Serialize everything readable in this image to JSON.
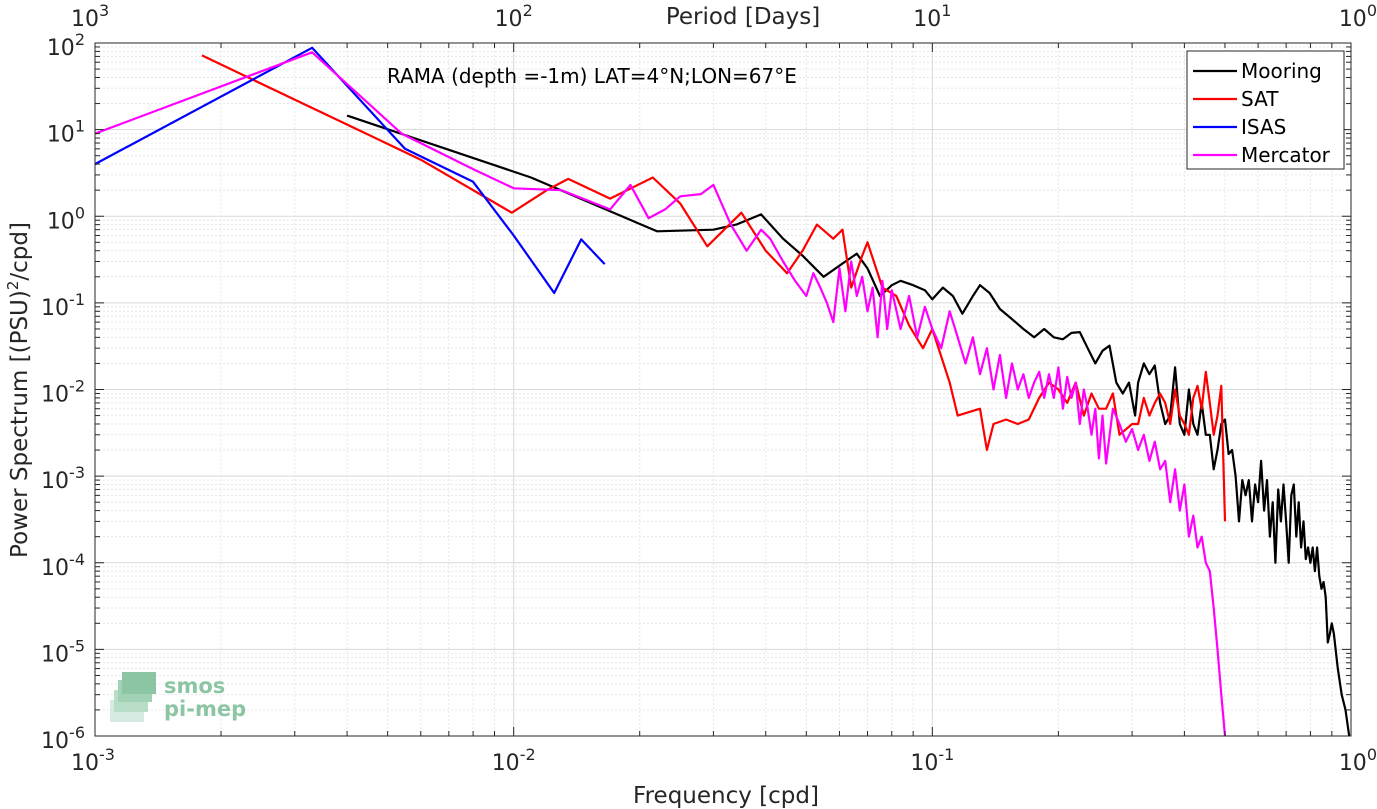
{
  "chart_data": {
    "type": "line",
    "title": "RAMA (depth =-1m) LAT=4°N;LON=67°E",
    "xlabel": "Frequency [cpd]",
    "ylabel": "Power Spectrum [(PSU)",
    "ylabel_sup": "2",
    "ylabel_end": "/cpd]",
    "top_xlabel": "Period [Days]",
    "xscale": "log",
    "yscale": "log",
    "xlim": [
      0.001,
      1
    ],
    "ylim": [
      1e-06,
      100
    ],
    "grid": true,
    "legend_placement": "top-right",
    "x_ticks": [
      {
        "value": 0.001,
        "base": "10",
        "exp": "-3"
      },
      {
        "value": 0.01,
        "base": "10",
        "exp": "-2"
      },
      {
        "value": 0.1,
        "base": "10",
        "exp": "-1"
      },
      {
        "value": 1,
        "base": "10",
        "exp": "0"
      }
    ],
    "y_ticks": [
      {
        "value": 1e-06,
        "base": "10",
        "exp": "-6"
      },
      {
        "value": 1e-05,
        "base": "10",
        "exp": "-5"
      },
      {
        "value": 0.0001,
        "base": "10",
        "exp": "-4"
      },
      {
        "value": 0.001,
        "base": "10",
        "exp": "-3"
      },
      {
        "value": 0.01,
        "base": "10",
        "exp": "-2"
      },
      {
        "value": 0.1,
        "base": "10",
        "exp": "-1"
      },
      {
        "value": 1,
        "base": "10",
        "exp": "0"
      },
      {
        "value": 10,
        "base": "10",
        "exp": "1"
      },
      {
        "value": 100,
        "base": "10",
        "exp": "2"
      }
    ],
    "top_ticks": [
      {
        "value": 0.001,
        "base": "10",
        "exp": "3"
      },
      {
        "value": 0.01,
        "base": "10",
        "exp": "2"
      },
      {
        "value": 0.1,
        "base": "10",
        "exp": "1"
      },
      {
        "value": 1,
        "base": "10",
        "exp": "0"
      }
    ],
    "series": [
      {
        "name": "Mooring",
        "color": "#000000",
        "points": [
          [
            0.004,
            14.5
          ],
          [
            0.011,
            2.8
          ],
          [
            0.022,
            0.67
          ],
          [
            0.03,
            0.7
          ],
          [
            0.034,
            0.8
          ],
          [
            0.039,
            1.05
          ],
          [
            0.044,
            0.55
          ],
          [
            0.049,
            0.35
          ],
          [
            0.055,
            0.2
          ],
          [
            0.062,
            0.3
          ],
          [
            0.066,
            0.37
          ],
          [
            0.07,
            0.25
          ],
          [
            0.075,
            0.12
          ],
          [
            0.08,
            0.16
          ],
          [
            0.084,
            0.18
          ],
          [
            0.09,
            0.16
          ],
          [
            0.096,
            0.14
          ],
          [
            0.1,
            0.11
          ],
          [
            0.106,
            0.15
          ],
          [
            0.112,
            0.12
          ],
          [
            0.118,
            0.075
          ],
          [
            0.125,
            0.12
          ],
          [
            0.13,
            0.16
          ],
          [
            0.137,
            0.13
          ],
          [
            0.145,
            0.085
          ],
          [
            0.155,
            0.065
          ],
          [
            0.165,
            0.05
          ],
          [
            0.175,
            0.04
          ],
          [
            0.185,
            0.05
          ],
          [
            0.195,
            0.04
          ],
          [
            0.205,
            0.038
          ],
          [
            0.215,
            0.045
          ],
          [
            0.225,
            0.046
          ],
          [
            0.235,
            0.03
          ],
          [
            0.245,
            0.02
          ],
          [
            0.255,
            0.028
          ],
          [
            0.265,
            0.032
          ],
          [
            0.275,
            0.012
          ],
          [
            0.285,
            0.009
          ],
          [
            0.295,
            0.012
          ],
          [
            0.305,
            0.005
          ],
          [
            0.31,
            0.012
          ],
          [
            0.32,
            0.02
          ],
          [
            0.33,
            0.015
          ],
          [
            0.34,
            0.019
          ],
          [
            0.35,
            0.007
          ],
          [
            0.36,
            0.004
          ],
          [
            0.37,
            0.005
          ],
          [
            0.38,
            0.018
          ],
          [
            0.39,
            0.004
          ],
          [
            0.4,
            0.003
          ],
          [
            0.41,
            0.01
          ],
          [
            0.42,
            0.004
          ],
          [
            0.43,
            0.003
          ],
          [
            0.44,
            0.007
          ],
          [
            0.45,
            0.003
          ],
          [
            0.46,
            0.003
          ],
          [
            0.47,
            0.0012
          ],
          [
            0.48,
            0.002
          ],
          [
            0.49,
            0.004
          ],
          [
            0.5,
            0.0045
          ],
          [
            0.51,
            0.0018
          ],
          [
            0.52,
            0.002
          ],
          [
            0.53,
            0.001
          ],
          [
            0.54,
            0.0003
          ],
          [
            0.55,
            0.0009
          ],
          [
            0.56,
            0.0006
          ],
          [
            0.57,
            0.0009
          ],
          [
            0.58,
            0.0003
          ],
          [
            0.59,
            0.0008
          ],
          [
            0.6,
            0.0005
          ],
          [
            0.61,
            0.0015
          ],
          [
            0.62,
            0.0004
          ],
          [
            0.63,
            0.0009
          ],
          [
            0.64,
            0.0002
          ],
          [
            0.65,
            0.0005
          ],
          [
            0.66,
            0.0001
          ],
          [
            0.67,
            0.0007
          ],
          [
            0.68,
            0.0003
          ],
          [
            0.69,
            0.0008
          ],
          [
            0.7,
            0.0003
          ],
          [
            0.71,
            0.0001
          ],
          [
            0.72,
            0.0006
          ],
          [
            0.73,
            0.0008
          ],
          [
            0.74,
            0.0002
          ],
          [
            0.75,
            0.0005
          ],
          [
            0.76,
            0.00015
          ],
          [
            0.77,
            0.0003
          ],
          [
            0.78,
            0.00011
          ],
          [
            0.79,
            0.00015
          ],
          [
            0.8,
            0.0001
          ],
          [
            0.81,
            0.00015
          ],
          [
            0.82,
            8e-05
          ],
          [
            0.83,
            0.00015
          ],
          [
            0.84,
            7e-05
          ],
          [
            0.85,
            5e-05
          ],
          [
            0.86,
            6e-05
          ],
          [
            0.87,
            4e-05
          ],
          [
            0.88,
            1.2e-05
          ],
          [
            0.89,
            1.5e-05
          ],
          [
            0.9,
            2e-05
          ],
          [
            0.91,
            1.5e-05
          ],
          [
            0.93,
            6e-06
          ],
          [
            0.95,
            3e-06
          ],
          [
            0.97,
            2e-06
          ],
          [
            0.99,
            1e-06
          ]
        ]
      },
      {
        "name": "SAT",
        "color": "#ff0000",
        "points": [
          [
            0.0018,
            72
          ],
          [
            0.006,
            4.5
          ],
          [
            0.0099,
            1.1
          ],
          [
            0.012,
            2.0
          ],
          [
            0.0135,
            2.7
          ],
          [
            0.017,
            1.6
          ],
          [
            0.0215,
            2.8
          ],
          [
            0.025,
            1.4
          ],
          [
            0.029,
            0.45
          ],
          [
            0.035,
            1.1
          ],
          [
            0.04,
            0.4
          ],
          [
            0.045,
            0.22
          ],
          [
            0.049,
            0.4
          ],
          [
            0.053,
            0.8
          ],
          [
            0.058,
            0.55
          ],
          [
            0.061,
            0.7
          ],
          [
            0.064,
            0.15
          ],
          [
            0.068,
            0.35
          ],
          [
            0.07,
            0.5
          ],
          [
            0.076,
            0.15
          ],
          [
            0.082,
            0.12
          ],
          [
            0.088,
            0.055
          ],
          [
            0.095,
            0.03
          ],
          [
            0.1,
            0.05
          ],
          [
            0.11,
            0.012
          ],
          [
            0.115,
            0.005
          ],
          [
            0.13,
            0.006
          ],
          [
            0.135,
            0.002
          ],
          [
            0.14,
            0.004
          ],
          [
            0.15,
            0.0045
          ],
          [
            0.16,
            0.004
          ],
          [
            0.17,
            0.0045
          ],
          [
            0.18,
            0.008
          ],
          [
            0.19,
            0.012
          ],
          [
            0.2,
            0.01
          ],
          [
            0.21,
            0.007
          ],
          [
            0.22,
            0.012
          ],
          [
            0.23,
            0.005
          ],
          [
            0.24,
            0.009
          ],
          [
            0.25,
            0.006
          ],
          [
            0.26,
            0.006
          ],
          [
            0.27,
            0.009
          ],
          [
            0.28,
            0.003
          ],
          [
            0.3,
            0.004
          ],
          [
            0.31,
            0.004
          ],
          [
            0.32,
            0.008
          ],
          [
            0.33,
            0.005
          ],
          [
            0.34,
            0.007
          ],
          [
            0.35,
            0.009
          ],
          [
            0.36,
            0.007
          ],
          [
            0.37,
            0.004
          ],
          [
            0.38,
            0.01
          ],
          [
            0.39,
            0.005
          ],
          [
            0.4,
            0.004
          ],
          [
            0.41,
            0.003
          ],
          [
            0.42,
            0.008
          ],
          [
            0.43,
            0.011
          ],
          [
            0.44,
            0.006
          ],
          [
            0.45,
            0.016
          ],
          [
            0.46,
            0.007
          ],
          [
            0.47,
            0.003
          ],
          [
            0.48,
            0.005
          ],
          [
            0.49,
            0.011
          ],
          [
            0.5,
            0.0003
          ]
        ]
      },
      {
        "name": "ISAS",
        "color": "#0000ff",
        "points": [
          [
            0.001,
            4.0
          ],
          [
            0.0033,
            88
          ],
          [
            0.0055,
            6.0
          ],
          [
            0.008,
            2.5
          ],
          [
            0.01,
            0.6
          ],
          [
            0.0125,
            0.13
          ],
          [
            0.0145,
            0.54
          ],
          [
            0.0165,
            0.28
          ]
        ]
      },
      {
        "name": "Mercator",
        "color": "#ff00ff",
        "points": [
          [
            0.001,
            9.0
          ],
          [
            0.0033,
            78
          ],
          [
            0.0054,
            9.0
          ],
          [
            0.008,
            3.5
          ],
          [
            0.01,
            2.1
          ],
          [
            0.013,
            2.0
          ],
          [
            0.017,
            1.2
          ],
          [
            0.019,
            2.3
          ],
          [
            0.021,
            0.95
          ],
          [
            0.023,
            1.2
          ],
          [
            0.025,
            1.7
          ],
          [
            0.028,
            1.8
          ],
          [
            0.03,
            2.3
          ],
          [
            0.033,
            0.8
          ],
          [
            0.036,
            0.4
          ],
          [
            0.039,
            0.7
          ],
          [
            0.041,
            0.55
          ],
          [
            0.044,
            0.3
          ],
          [
            0.047,
            0.18
          ],
          [
            0.05,
            0.12
          ],
          [
            0.052,
            0.22
          ],
          [
            0.054,
            0.15
          ],
          [
            0.056,
            0.1
          ],
          [
            0.058,
            0.06
          ],
          [
            0.06,
            0.25
          ],
          [
            0.062,
            0.08
          ],
          [
            0.064,
            0.3
          ],
          [
            0.066,
            0.12
          ],
          [
            0.068,
            0.2
          ],
          [
            0.07,
            0.08
          ],
          [
            0.072,
            0.15
          ],
          [
            0.074,
            0.04
          ],
          [
            0.076,
            0.18
          ],
          [
            0.078,
            0.05
          ],
          [
            0.08,
            0.14
          ],
          [
            0.084,
            0.05
          ],
          [
            0.088,
            0.12
          ],
          [
            0.092,
            0.04
          ],
          [
            0.096,
            0.09
          ],
          [
            0.1,
            0.05
          ],
          [
            0.105,
            0.03
          ],
          [
            0.11,
            0.08
          ],
          [
            0.115,
            0.04
          ],
          [
            0.12,
            0.02
          ],
          [
            0.125,
            0.04
          ],
          [
            0.13,
            0.015
          ],
          [
            0.135,
            0.03
          ],
          [
            0.14,
            0.01
          ],
          [
            0.145,
            0.025
          ],
          [
            0.15,
            0.008
          ],
          [
            0.155,
            0.02
          ],
          [
            0.16,
            0.01
          ],
          [
            0.165,
            0.015
          ],
          [
            0.17,
            0.008
          ],
          [
            0.175,
            0.012
          ],
          [
            0.18,
            0.016
          ],
          [
            0.185,
            0.008
          ],
          [
            0.19,
            0.015
          ],
          [
            0.195,
            0.008
          ],
          [
            0.2,
            0.018
          ],
          [
            0.205,
            0.006
          ],
          [
            0.21,
            0.014
          ],
          [
            0.215,
            0.008
          ],
          [
            0.22,
            0.012
          ],
          [
            0.225,
            0.004
          ],
          [
            0.23,
            0.01
          ],
          [
            0.235,
            0.006
          ],
          [
            0.24,
            0.003
          ],
          [
            0.245,
            0.006
          ],
          [
            0.25,
            0.0016
          ],
          [
            0.255,
            0.005
          ],
          [
            0.26,
            0.0014
          ],
          [
            0.27,
            0.006
          ],
          [
            0.28,
            0.004
          ],
          [
            0.29,
            0.0025
          ],
          [
            0.3,
            0.0035
          ],
          [
            0.31,
            0.002
          ],
          [
            0.32,
            0.003
          ],
          [
            0.33,
            0.0015
          ],
          [
            0.34,
            0.0025
          ],
          [
            0.35,
            0.0012
          ],
          [
            0.36,
            0.0015
          ],
          [
            0.37,
            0.0005
          ],
          [
            0.38,
            0.0012
          ],
          [
            0.39,
            0.0004
          ],
          [
            0.4,
            0.0008
          ],
          [
            0.41,
            0.0002
          ],
          [
            0.42,
            0.00035
          ],
          [
            0.43,
            0.00015
          ],
          [
            0.44,
            0.0002
          ],
          [
            0.45,
            0.0001
          ],
          [
            0.46,
            8e-05
          ],
          [
            0.47,
            3e-05
          ],
          [
            0.48,
            1e-05
          ],
          [
            0.49,
            3e-06
          ],
          [
            0.5,
            1e-06
          ]
        ]
      }
    ]
  },
  "logo": {
    "line1": "smos",
    "line2": "pi-mep",
    "color": "#8cc5a3"
  }
}
